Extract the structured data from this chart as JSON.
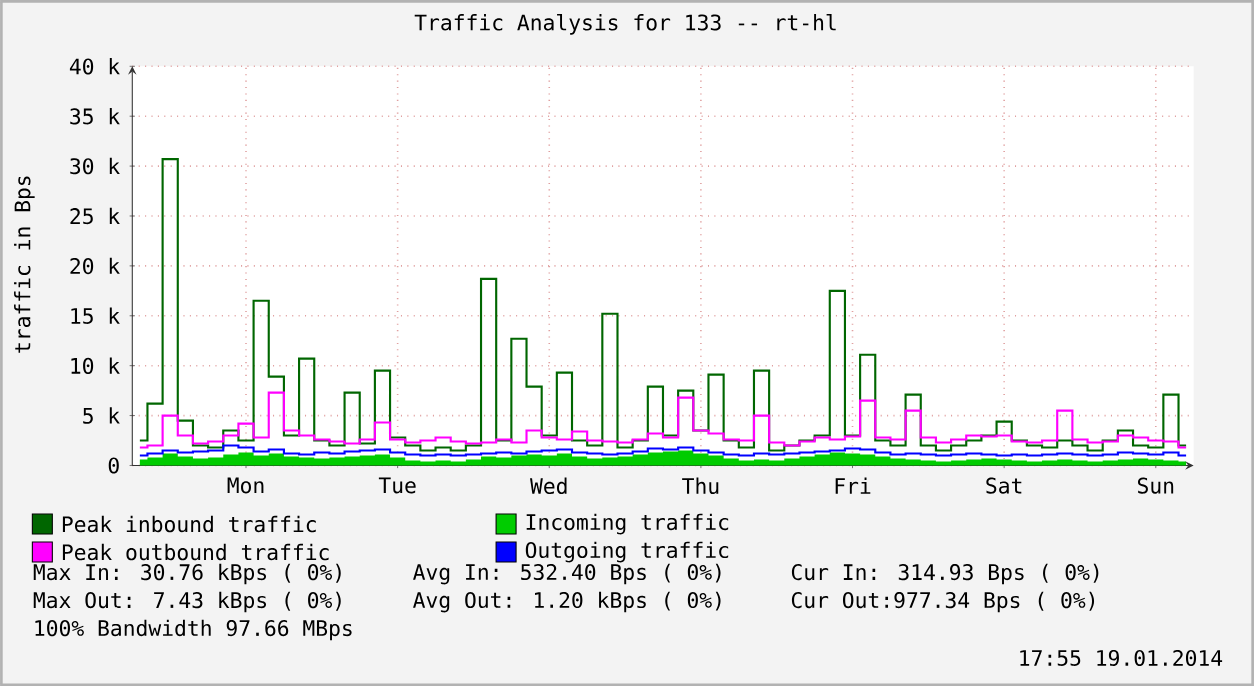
{
  "chart_data": {
    "type": "step",
    "title": "Traffic Analysis for 133 -- rt-hl",
    "ylabel": "traffic in Bps",
    "categories": [
      null,
      null,
      null,
      null,
      null,
      null,
      null,
      "Mon",
      null,
      null,
      null,
      null,
      null,
      null,
      null,
      null,
      null,
      "Tue",
      null,
      null,
      null,
      null,
      null,
      null,
      null,
      null,
      null,
      "Wed",
      null,
      null,
      null,
      null,
      null,
      null,
      null,
      null,
      null,
      "Thu",
      null,
      null,
      null,
      null,
      null,
      null,
      null,
      null,
      null,
      "Fri",
      null,
      null,
      null,
      null,
      null,
      null,
      null,
      null,
      null,
      "Sat",
      null,
      null,
      null,
      null,
      null,
      null,
      null,
      null,
      null,
      "Sun",
      null,
      null
    ],
    "series": [
      {
        "name": "Peak inbound traffic",
        "color": "#006600",
        "values": [
          2500,
          6200,
          30700,
          4500,
          2000,
          1800,
          3500,
          2500,
          16500,
          8900,
          3000,
          10700,
          2500,
          2000,
          7300,
          2200,
          9500,
          2800,
          2000,
          1500,
          1800,
          1500,
          2000,
          18700,
          2500,
          12700,
          7900,
          3000,
          9300,
          2500,
          2000,
          15200,
          1800,
          2500,
          7900,
          3000,
          7500,
          3500,
          9100,
          2500,
          1800,
          9500,
          1500,
          2000,
          2500,
          3000,
          17500,
          3000,
          11100,
          2500,
          2000,
          7100,
          2000,
          1500,
          2000,
          2500,
          3000,
          4400,
          2500,
          2000,
          1800,
          2500,
          2000,
          1500,
          2500,
          3500,
          2000,
          1800,
          7100,
          2000
        ]
      },
      {
        "name": "Incoming traffic",
        "type": "area",
        "color": "#00cc00",
        "values": [
          600,
          800,
          1200,
          900,
          700,
          800,
          1100,
          1300,
          1000,
          1200,
          900,
          800,
          700,
          800,
          900,
          1000,
          1100,
          800,
          500,
          400,
          500,
          400,
          600,
          900,
          800,
          1000,
          1100,
          1000,
          1200,
          900,
          700,
          800,
          900,
          1100,
          1300,
          1400,
          1500,
          1200,
          1000,
          700,
          500,
          600,
          500,
          700,
          900,
          1100,
          1300,
          1200,
          1100,
          900,
          700,
          600,
          500,
          400,
          500,
          600,
          700,
          600,
          500,
          400,
          500,
          600,
          500,
          400,
          500,
          600,
          700,
          600,
          500,
          400
        ]
      },
      {
        "name": "Peak outbound traffic",
        "color": "#ff00ff",
        "values": [
          1800,
          2000,
          5000,
          3000,
          2200,
          2400,
          3000,
          4200,
          2800,
          7300,
          3500,
          3000,
          2600,
          2400,
          2200,
          2600,
          4300,
          2600,
          2300,
          2500,
          2800,
          2400,
          2200,
          2300,
          2600,
          2300,
          3500,
          2800,
          2600,
          3400,
          2500,
          2400,
          2300,
          2600,
          3200,
          2800,
          6800,
          3500,
          3200,
          2600,
          2500,
          5000,
          2300,
          2000,
          2400,
          2800,
          2600,
          2900,
          6500,
          2800,
          2600,
          5500,
          2800,
          2300,
          2600,
          3000,
          2900,
          3000,
          2400,
          2300,
          2500,
          5500,
          2600,
          2300,
          2400,
          3000,
          2800,
          2500,
          2400,
          1800
        ]
      },
      {
        "name": "Outgoing traffic",
        "color": "#0000ff",
        "values": [
          1000,
          1200,
          1500,
          1300,
          1400,
          1500,
          2000,
          1800,
          1400,
          1600,
          1200,
          1100,
          1300,
          1200,
          1400,
          1500,
          1600,
          1300,
          1100,
          1000,
          1100,
          1000,
          1100,
          1200,
          1300,
          1200,
          1400,
          1500,
          1600,
          1300,
          1200,
          1100,
          1200,
          1400,
          1700,
          1600,
          1800,
          1500,
          1300,
          1100,
          1000,
          1200,
          1100,
          1200,
          1300,
          1400,
          1500,
          1700,
          1600,
          1300,
          1100,
          1200,
          1100,
          1000,
          1100,
          1200,
          1100,
          1000,
          1100,
          1000,
          1100,
          1200,
          1100,
          1000,
          1100,
          1300,
          1200,
          1100,
          1300,
          1000
        ]
      }
    ],
    "ylim": [
      0,
      40000
    ],
    "yticks": [
      0,
      {
        "value": 5000,
        "label": "5 k"
      },
      {
        "value": 10000,
        "label": "10 k"
      },
      {
        "value": 15000,
        "label": "15 k"
      },
      {
        "value": 20000,
        "label": "20 k"
      },
      {
        "value": 25000,
        "label": "25 k"
      },
      {
        "value": 30000,
        "label": "30 k"
      },
      {
        "value": 35000,
        "label": "35 k"
      },
      {
        "value": 40000,
        "label": "40 k"
      }
    ],
    "grid": true,
    "legend": "bottom",
    "annotations": [
      "Max In: 30.76 kBps ( 0%)",
      "Avg In: 532.40 Bps ( 0%)",
      "Cur In: 314.93 Bps ( 0%)",
      "Max Out: 7.43 kBps ( 0%)",
      "Avg Out: 1.20 kBps ( 0%)",
      "Cur Out:977.34 Bps ( 0%)",
      "100% Bandwidth 97.66 MBps",
      "17:55 19.01.2014"
    ]
  }
}
